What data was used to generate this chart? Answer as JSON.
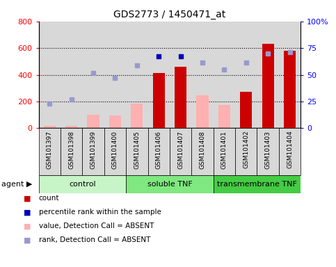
{
  "title": "GDS2773 / 1450471_at",
  "samples": [
    "GSM101397",
    "GSM101398",
    "GSM101399",
    "GSM101400",
    "GSM101405",
    "GSM101406",
    "GSM101407",
    "GSM101408",
    "GSM101401",
    "GSM101402",
    "GSM101403",
    "GSM101404"
  ],
  "groups": [
    {
      "label": "control",
      "start": 0,
      "end": 3,
      "color": "#c8f5c8"
    },
    {
      "label": "soluble TNF",
      "start": 4,
      "end": 7,
      "color": "#80e880"
    },
    {
      "label": "transmembrane TNF",
      "start": 8,
      "end": 11,
      "color": "#44cc44"
    }
  ],
  "left_ylim": [
    0,
    800
  ],
  "left_yticks": [
    0,
    200,
    400,
    600,
    800
  ],
  "right_yticklabels": [
    "0",
    "25",
    "50",
    "75",
    "100%"
  ],
  "right_ytick_positions": [
    0,
    200,
    400,
    600,
    800
  ],
  "bars_red": [
    {
      "idx": 5,
      "value": 415
    },
    {
      "idx": 6,
      "value": 460
    },
    {
      "idx": 9,
      "value": 270
    },
    {
      "idx": 10,
      "value": 630
    },
    {
      "idx": 11,
      "value": 580
    }
  ],
  "bars_pink": [
    {
      "idx": 0,
      "value": 15
    },
    {
      "idx": 1,
      "value": 15
    },
    {
      "idx": 2,
      "value": 100
    },
    {
      "idx": 3,
      "value": 95
    },
    {
      "idx": 4,
      "value": 185
    },
    {
      "idx": 7,
      "value": 245
    },
    {
      "idx": 8,
      "value": 175
    }
  ],
  "squares_blue": [
    {
      "idx": 5,
      "value": 540
    },
    {
      "idx": 6,
      "value": 540
    }
  ],
  "squares_lightblue": [
    {
      "idx": 0,
      "value": 185
    },
    {
      "idx": 1,
      "value": 215
    },
    {
      "idx": 2,
      "value": 415
    },
    {
      "idx": 3,
      "value": 375
    },
    {
      "idx": 4,
      "value": 470
    },
    {
      "idx": 7,
      "value": 490
    },
    {
      "idx": 8,
      "value": 440
    },
    {
      "idx": 9,
      "value": 490
    },
    {
      "idx": 10,
      "value": 560
    },
    {
      "idx": 11,
      "value": 570
    }
  ],
  "bar_width": 0.55,
  "red_color": "#cc0000",
  "pink_color": "#ffb0b0",
  "blue_color": "#0000bb",
  "lightblue_color": "#9999cc",
  "gray_cell_color": "#d8d8d8",
  "legend_items": [
    {
      "color": "#cc0000",
      "label": "count"
    },
    {
      "color": "#0000bb",
      "label": "percentile rank within the sample"
    },
    {
      "color": "#ffb0b0",
      "label": "value, Detection Call = ABSENT"
    },
    {
      "color": "#9999cc",
      "label": "rank, Detection Call = ABSENT"
    }
  ]
}
